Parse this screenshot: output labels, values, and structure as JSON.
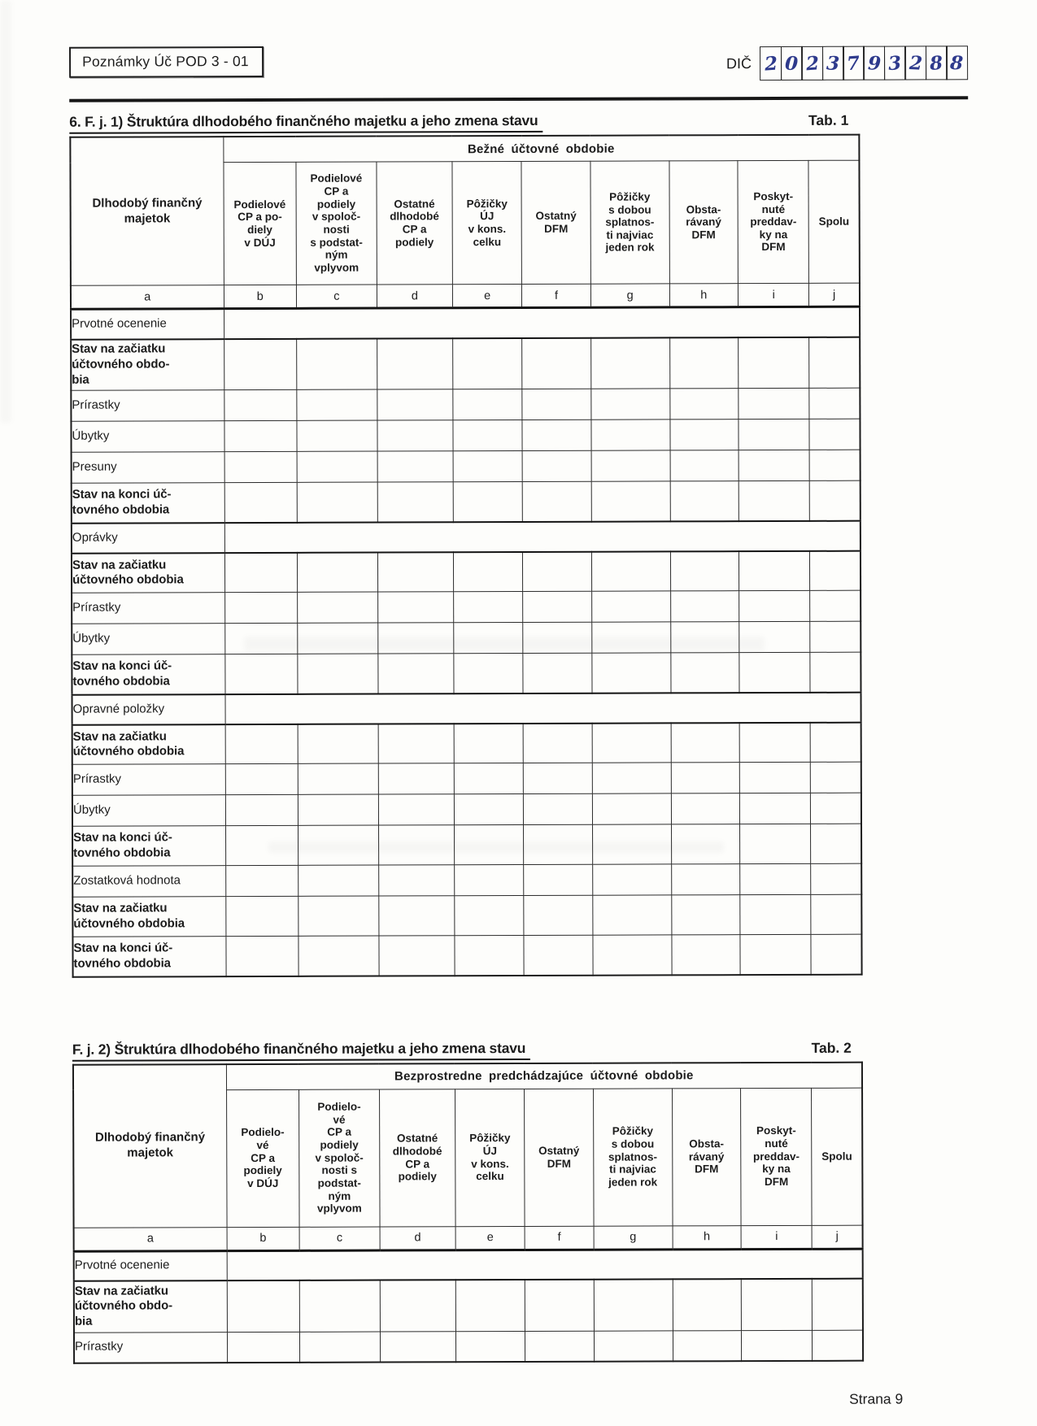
{
  "header": {
    "form_id": "Poznámky Úč POD 3 - 01",
    "dic_label": "DIČ",
    "dic_digits": [
      "2",
      "0",
      "2",
      "3",
      "7",
      "9",
      "3",
      "2",
      "8",
      "8"
    ]
  },
  "table1": {
    "title": "6. F. j. 1) Štruktúra dlhodobého finančného majetku a jeho zmena stavu",
    "tab_label": "Tab. 1",
    "period_header": "Bežné účtovné obdobie",
    "row_header": "Dlhodobý finančný\nmajetok",
    "columns": [
      "Podielové\nCP a po-\ndiely\nv DÚJ",
      "Podielové\nCP a\npodiely\nv spoloč-\nnosti\ns podstat-\nným\nvplyvom",
      "Ostatné\ndlhodobé\nCP a\npodiely",
      "Pôžičky\nÚJ\nv kons.\ncelku",
      "Ostatný\nDFM",
      "Pôžičky\ns dobou\nsplatnos-\nti najviac\njeden rok",
      "Obsta-\nrávaný\nDFM",
      "Poskyt-\nnuté\npreddav-\nky na\nDFM",
      "Spolu"
    ],
    "letters": [
      "a",
      "b",
      "c",
      "d",
      "e",
      "f",
      "g",
      "h",
      "i",
      "j"
    ],
    "rows": [
      {
        "label": "Prvotné ocenenie",
        "bold": false,
        "merged": true
      },
      {
        "label": "Stav na začiatku\núčtovného obdo-\nbia",
        "bold": true,
        "merged": false
      },
      {
        "label": "Prírastky",
        "bold": false,
        "merged": false
      },
      {
        "label": "Úbytky",
        "bold": false,
        "merged": false
      },
      {
        "label": "Presuny",
        "bold": false,
        "merged": false
      },
      {
        "label": "Stav na konci úč-\ntovného obdobia",
        "bold": true,
        "merged": false
      },
      {
        "label": "Oprávky",
        "bold": false,
        "merged": true
      },
      {
        "label": "Stav na začiatku\núčtovného obdobia",
        "bold": true,
        "merged": false
      },
      {
        "label": "Prírastky",
        "bold": false,
        "merged": false
      },
      {
        "label": "Úbytky",
        "bold": false,
        "merged": false
      },
      {
        "label": "Stav na konci úč-\ntovného obdobia",
        "bold": true,
        "merged": false
      },
      {
        "label": "Opravné položky",
        "bold": false,
        "merged": true
      },
      {
        "label": "Stav na začiatku\núčtovného obdobia",
        "bold": true,
        "merged": false
      },
      {
        "label": "Prírastky",
        "bold": false,
        "merged": false
      },
      {
        "label": "Úbytky",
        "bold": false,
        "merged": false
      },
      {
        "label": "Stav na konci úč-\ntovného obdobia",
        "bold": true,
        "merged": false
      },
      {
        "label": "Zostatková hodnota",
        "bold": false,
        "merged": false
      },
      {
        "label": "Stav na začiatku\núčtovného obdobia",
        "bold": true,
        "merged": false
      },
      {
        "label": "Stav na konci úč-\ntovného obdobia",
        "bold": true,
        "merged": false
      }
    ]
  },
  "table2": {
    "title": "F. j. 2)  Štruktúra dlhodobého finančného majetku a jeho zmena stavu",
    "tab_label": "Tab. 2",
    "period_header": "Bezprostredne predchádzajúce  účtovné obdobie",
    "row_header": "Dlhodobý finančný\nmajetok",
    "columns": [
      "Podielo-\nvé\nCP a\npodiely\nv DÚJ",
      "Podielo-\nvé\nCP a\npodiely\nv spoloč-\nnosti s\npodstat-\nným\nvplyvom",
      "Ostatné\ndlhodobé\nCP a\npodiely",
      "Pôžičky\nÚJ\nv kons.\ncelku",
      "Ostatný\nDFM",
      "Pôžičky\ns dobou\nsplatnos-\nti najviac\njeden rok",
      "Obsta-\nrávaný\nDFM",
      "Poskyt-\nnuté\npreddav-\nky na\nDFM",
      "Spolu"
    ],
    "letters": [
      "a",
      "b",
      "c",
      "d",
      "e",
      "f",
      "g",
      "h",
      "i",
      "j"
    ],
    "rows": [
      {
        "label": "Prvotné ocenenie",
        "bold": false,
        "merged": true
      },
      {
        "label": "Stav na začiatku\núčtovného obdo-\nbia",
        "bold": true,
        "merged": false
      },
      {
        "label": "Prírastky",
        "bold": false,
        "merged": false
      }
    ]
  },
  "footer": {
    "page_number": "Strana 9"
  }
}
